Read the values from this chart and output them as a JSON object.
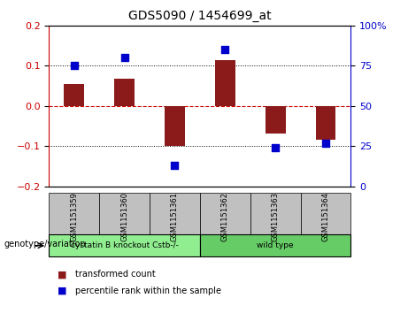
{
  "title": "GDS5090 / 1454699_at",
  "categories": [
    "GSM1151359",
    "GSM1151360",
    "GSM1151361",
    "GSM1151362",
    "GSM1151363",
    "GSM1151364"
  ],
  "bar_values": [
    0.055,
    0.068,
    -0.1,
    0.115,
    -0.068,
    -0.085
  ],
  "percentile_values": [
    75,
    80,
    13,
    85,
    24,
    27
  ],
  "bar_color": "#8B1A1A",
  "dot_color": "#0000CC",
  "ylim_left": [
    -0.2,
    0.2
  ],
  "ylim_right": [
    0,
    100
  ],
  "yticks_left": [
    -0.2,
    -0.1,
    0,
    0.1,
    0.2
  ],
  "yticks_right": [
    0,
    25,
    50,
    75,
    100
  ],
  "ytick_labels_right": [
    "0",
    "25",
    "50",
    "75",
    "100%"
  ],
  "groups": [
    {
      "label": "cystatin B knockout Cstb-/-",
      "indices": [
        0,
        1,
        2
      ],
      "color": "#90EE90"
    },
    {
      "label": "wild type",
      "indices": [
        3,
        4,
        5
      ],
      "color": "#66CC66"
    }
  ],
  "group_row_label": "genotype/variation",
  "legend_bar_label": "transformed count",
  "legend_dot_label": "percentile rank within the sample",
  "background_color": "#FFFFFF",
  "plot_bg_color": "#FFFFFF",
  "grid_color": "#000000",
  "zero_line_color": "#CC0000",
  "bar_width": 0.4,
  "dot_size": 40
}
